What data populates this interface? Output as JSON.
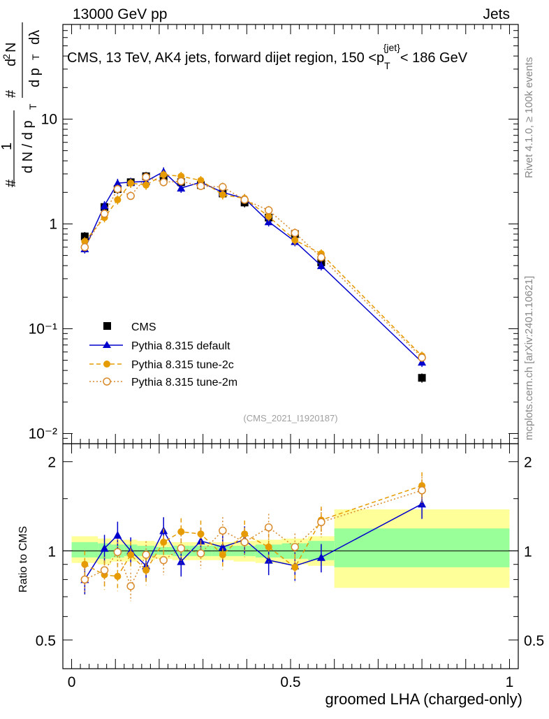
{
  "header": {
    "left": "13000 GeV pp",
    "right": "Jets"
  },
  "side_labels": {
    "rivet": "Rivet 4.1.0, ≥ 100k events",
    "mcplots": "mcplots.cern.ch [arXiv:2401.10621]"
  },
  "colors": {
    "cms": "#000000",
    "default": "#0000cc",
    "tune2c": "#e69b00",
    "tune2m": "#d98a2b",
    "band_inner": "#99ff99",
    "band_outer": "#ffff99"
  },
  "chart_data": [
    {
      "type": "scatter",
      "title": "CMS, 13 TeV, AK4 jets, forward dijet region, 150 <p_T^{jet}< 186 GeV",
      "ylabel": "1/(dN/dp_T) d²N/(dp_T dλ)",
      "yscale": "log",
      "ylim": [
        0.008,
        80
      ],
      "xlim": [
        -0.02,
        1.02
      ],
      "ytick_labels": [
        "10⁻²",
        "10⁻¹",
        "1",
        "10"
      ],
      "watermark": "(CMS_2021_I1920187)",
      "legend_position": "center-left",
      "x": [
        0.03,
        0.075,
        0.105,
        0.135,
        0.17,
        0.21,
        0.25,
        0.295,
        0.345,
        0.395,
        0.45,
        0.51,
        0.57,
        0.8
      ],
      "series": [
        {
          "name": "CMS",
          "marker": "square",
          "values": [
            0.76,
            1.45,
            2.15,
            2.5,
            2.85,
            2.75,
            2.5,
            2.35,
            1.95,
            1.6,
            1.15,
            0.8,
            0.43,
            0.034
          ]
        },
        {
          "name": "Pythia 8.315 default",
          "marker": "triangle",
          "values": [
            0.58,
            1.5,
            2.45,
            2.5,
            2.55,
            3.15,
            2.2,
            2.5,
            2.0,
            1.75,
            1.05,
            0.68,
            0.4,
            0.048
          ]
        },
        {
          "name": "Pythia 8.315 tune-2c",
          "marker": "circle",
          "values": [
            0.68,
            1.15,
            1.7,
            2.45,
            2.35,
            2.95,
            2.85,
            2.6,
            1.9,
            1.75,
            1.18,
            0.7,
            0.52,
            0.055
          ]
        },
        {
          "name": "Pythia 8.315 tune-2m",
          "marker": "open-circle",
          "values": [
            0.6,
            1.25,
            2.15,
            1.85,
            2.8,
            2.5,
            2.55,
            2.3,
            2.25,
            1.7,
            1.35,
            0.82,
            0.48,
            0.053
          ]
        }
      ]
    },
    {
      "type": "scatter",
      "ylabel": "Ratio to CMS",
      "xlabel": "groomed LHA (charged-only)",
      "ylim": [
        0.4,
        2.3
      ],
      "xlim": [
        -0.02,
        1.02
      ],
      "ytick_labels": [
        "0.5",
        "1",
        "2"
      ],
      "xtick_labels": [
        "0",
        "0.5",
        "1"
      ],
      "bin_edges": [
        0.0,
        0.06,
        0.09,
        0.12,
        0.15,
        0.19,
        0.23,
        0.27,
        0.32,
        0.37,
        0.42,
        0.48,
        0.54,
        0.6,
        1.0
      ],
      "band_inner": [
        [
          0.95,
          1.07
        ],
        [
          0.94,
          1.06
        ],
        [
          0.95,
          1.05
        ],
        [
          0.96,
          1.05
        ],
        [
          0.96,
          1.04
        ],
        [
          0.97,
          1.03
        ],
        [
          0.96,
          1.04
        ],
        [
          0.96,
          1.04
        ],
        [
          0.96,
          1.04
        ],
        [
          0.96,
          1.04
        ],
        [
          0.95,
          1.05
        ],
        [
          0.94,
          1.06
        ],
        [
          0.93,
          1.08
        ],
        [
          0.88,
          1.19
        ]
      ],
      "band_outer": [
        [
          0.91,
          1.12
        ],
        [
          0.9,
          1.1
        ],
        [
          0.92,
          1.09
        ],
        [
          0.92,
          1.09
        ],
        [
          0.93,
          1.08
        ],
        [
          0.94,
          1.07
        ],
        [
          0.93,
          1.07
        ],
        [
          0.93,
          1.07
        ],
        [
          0.93,
          1.07
        ],
        [
          0.92,
          1.08
        ],
        [
          0.91,
          1.09
        ],
        [
          0.9,
          1.1
        ],
        [
          0.89,
          1.12
        ],
        [
          0.75,
          1.38
        ]
      ],
      "x": [
        0.03,
        0.075,
        0.105,
        0.135,
        0.17,
        0.21,
        0.25,
        0.295,
        0.345,
        0.395,
        0.45,
        0.51,
        0.57,
        0.8
      ],
      "series": [
        {
          "name": "Pythia 8.315 default",
          "values": [
            0.8,
            1.02,
            1.13,
            1.0,
            0.89,
            1.17,
            0.92,
            1.08,
            1.03,
            1.09,
            0.93,
            0.89,
            0.95,
            1.44
          ]
        },
        {
          "name": "Pythia 8.315 tune-2c",
          "values": [
            0.9,
            0.83,
            0.82,
            0.97,
            0.86,
            1.07,
            1.16,
            1.14,
            0.97,
            1.14,
            1.03,
            0.88,
            1.27,
            1.66
          ]
        },
        {
          "name": "Pythia 8.315 tune-2m",
          "values": [
            0.8,
            0.86,
            0.99,
            0.76,
            0.97,
            0.93,
            1.02,
            0.98,
            1.17,
            1.07,
            1.2,
            1.03,
            1.25,
            1.6
          ]
        }
      ]
    }
  ]
}
